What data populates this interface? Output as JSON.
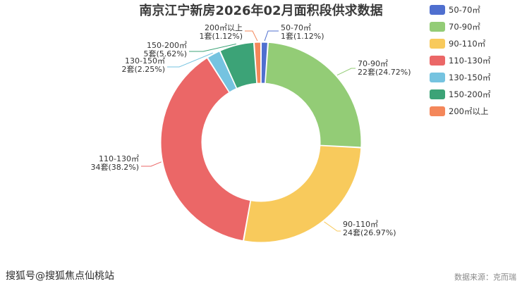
{
  "chart_data": {
    "type": "pie",
    "donut": true,
    "title": "南京江宁新房2026年02月面积段供求数据",
    "legend_position": "top-right",
    "slices": [
      {
        "name": "50-70㎡",
        "label_value": "1套(1.12%)",
        "value": 1,
        "percent": 1.12,
        "color": "#4f6fcf"
      },
      {
        "name": "70-90㎡",
        "label_value": "22套(24.72%)",
        "value": 22,
        "percent": 24.72,
        "color": "#93cc76"
      },
      {
        "name": "90-110㎡",
        "label_value": "24套(26.97%)",
        "value": 24,
        "percent": 26.97,
        "color": "#f8ca5c"
      },
      {
        "name": "110-130㎡",
        "label_value": "34套(38.2%)",
        "value": 34,
        "percent": 38.2,
        "color": "#eb6767"
      },
      {
        "name": "130-150㎡",
        "label_value": "2套(2.25%)",
        "value": 2,
        "percent": 2.25,
        "color": "#75c3e0"
      },
      {
        "name": "150-200㎡",
        "label_value": "5套(5.62%)",
        "value": 5,
        "percent": 5.62,
        "color": "#3ca377"
      },
      {
        "name": "200㎡以上",
        "label_value": "1套(1.12%)",
        "value": 1,
        "percent": 1.12,
        "color": "#f4875a"
      }
    ]
  },
  "footer": {
    "watermark": "搜狐号@搜狐焦点仙桃站",
    "source": "数据来源：克而瑞"
  }
}
